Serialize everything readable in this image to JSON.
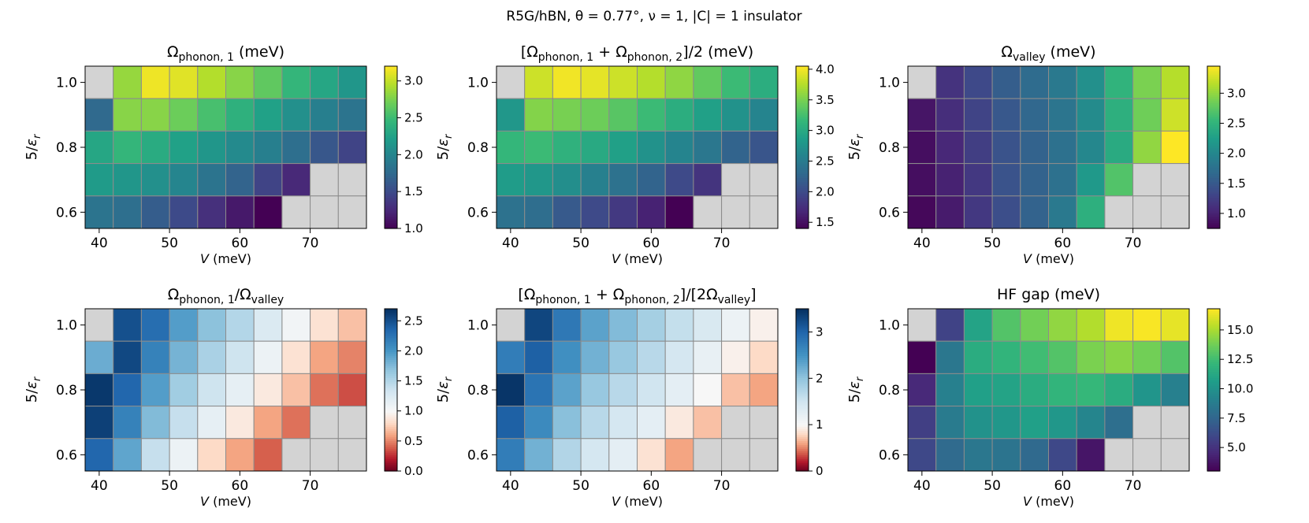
{
  "figure_title": "R5G/hBN, θ = 0.77°,  ν = 1,  |C| = 1 insulator",
  "colors": {
    "missing": "#d3d3d3",
    "cell_edge": "#8c8c8c",
    "viridis": [
      "#440154",
      "#482878",
      "#3e4989",
      "#31688e",
      "#26828e",
      "#1f9e89",
      "#35b779",
      "#6ece58",
      "#b5de2b",
      "#fde725"
    ],
    "rdbu": [
      "#67001f",
      "#b2182b",
      "#d6604d",
      "#f4a582",
      "#fddbc7",
      "#f7f7f7",
      "#d1e5f0",
      "#92c5de",
      "#4393c3",
      "#2166ac",
      "#053061"
    ]
  },
  "chart_data": [
    {
      "type": "heatmap",
      "title_main": "Ω",
      "title_sub": "phonon, 1",
      "title_rest": " (meV)",
      "xlabel": "V (meV)",
      "ylabel": "5/εr",
      "x": [
        40,
        45,
        50,
        55,
        60,
        65,
        70,
        75
      ],
      "x_edges": [
        38,
        78
      ],
      "cols": 10,
      "xticks": [
        "40",
        "50",
        "60",
        "70"
      ],
      "xtick_values": [
        40,
        50,
        60,
        70
      ],
      "y": [
        1.0,
        0.9,
        0.8,
        0.7,
        0.6
      ],
      "ylim": [
        0.55,
        1.05
      ],
      "yticks": [
        "1.0",
        "0.8",
        "0.6"
      ],
      "ytick_values": [
        1.0,
        0.8,
        0.6
      ],
      "colormap": "viridis",
      "vmin": 1.0,
      "vmax": 3.2,
      "cbar_ticks": [
        1.0,
        1.5,
        2.0,
        2.5,
        3.0
      ],
      "cbar_labels": [
        "1.0",
        "1.5",
        "2.0",
        "2.5",
        "3.0"
      ],
      "values": [
        [
          null,
          2.85,
          3.15,
          3.1,
          2.95,
          2.8,
          2.65,
          2.45,
          2.3,
          2.15
        ],
        [
          1.75,
          2.8,
          2.8,
          2.7,
          2.55,
          2.4,
          2.25,
          2.1,
          1.95,
          1.85
        ],
        [
          2.3,
          2.45,
          2.35,
          2.25,
          2.15,
          2.05,
          1.95,
          1.8,
          1.6,
          1.45
        ],
        [
          2.2,
          2.15,
          2.1,
          2.0,
          1.85,
          1.7,
          1.45,
          1.25,
          null,
          null
        ],
        [
          1.85,
          1.8,
          1.65,
          1.5,
          1.3,
          1.15,
          1.0,
          null,
          null,
          null
        ]
      ]
    },
    {
      "type": "heatmap",
      "title_main": "[Ω",
      "title_sub": "phonon, 1",
      "title_mid": " + Ω",
      "title_sub2": "phonon, 2",
      "title_rest": "]/2 (meV)",
      "xlabel": "V (meV)",
      "ylabel": "5/εr",
      "x": [
        40,
        45,
        50,
        55,
        60,
        65,
        70,
        75
      ],
      "x_edges": [
        38,
        78
      ],
      "cols": 10,
      "xticks": [
        "40",
        "50",
        "60",
        "70"
      ],
      "xtick_values": [
        40,
        50,
        60,
        70
      ],
      "y": [
        1.0,
        0.9,
        0.8,
        0.7,
        0.6
      ],
      "ylim": [
        0.55,
        1.05
      ],
      "yticks": [
        "1.0",
        "0.8",
        "0.6"
      ],
      "ytick_values": [
        1.0,
        0.8,
        0.6
      ],
      "colormap": "viridis",
      "vmin": 1.4,
      "vmax": 4.05,
      "cbar_ticks": [
        1.5,
        2.0,
        2.5,
        3.0,
        3.5,
        4.0
      ],
      "cbar_labels": [
        "1.5",
        "2.0",
        "2.5",
        "3.0",
        "3.5",
        "4.0"
      ],
      "values": [
        [
          null,
          3.85,
          4.0,
          3.95,
          3.85,
          3.75,
          3.6,
          3.4,
          3.2,
          3.05
        ],
        [
          2.8,
          3.55,
          3.5,
          3.45,
          3.35,
          3.2,
          3.05,
          2.9,
          2.75,
          2.6
        ],
        [
          3.15,
          3.2,
          3.1,
          3.0,
          2.9,
          2.75,
          2.6,
          2.45,
          2.25,
          2.1
        ],
        [
          2.85,
          2.8,
          2.7,
          2.55,
          2.4,
          2.25,
          2.0,
          1.8,
          null,
          null
        ],
        [
          2.4,
          2.35,
          2.15,
          2.0,
          1.85,
          1.65,
          1.4,
          null,
          null,
          null
        ]
      ]
    },
    {
      "type": "heatmap",
      "title_main": "Ω",
      "title_sub": "valley",
      "title_rest": " (meV)",
      "xlabel": "V (meV)",
      "ylabel": "5/εr",
      "x": [
        40,
        45,
        50,
        55,
        60,
        65,
        70,
        75
      ],
      "x_edges": [
        38,
        78
      ],
      "cols": 10,
      "xticks": [
        "40",
        "50",
        "60",
        "70"
      ],
      "xtick_values": [
        40,
        50,
        60,
        70
      ],
      "y": [
        1.0,
        0.9,
        0.8,
        0.7,
        0.6
      ],
      "ylim": [
        0.55,
        1.05
      ],
      "yticks": [
        "1.0",
        "0.8",
        "0.6"
      ],
      "ytick_values": [
        1.0,
        0.8,
        0.6
      ],
      "colormap": "viridis",
      "vmin": 0.75,
      "vmax": 3.45,
      "cbar_ticks": [
        1.0,
        1.5,
        2.0,
        2.5,
        3.0
      ],
      "cbar_labels": [
        "1.0",
        "1.5",
        "2.0",
        "2.5",
        "3.0"
      ],
      "values": [
        [
          null,
          1.15,
          1.35,
          1.55,
          1.7,
          1.85,
          2.1,
          2.5,
          2.9,
          3.15
        ],
        [
          0.9,
          1.1,
          1.3,
          1.5,
          1.65,
          1.8,
          2.05,
          2.45,
          2.85,
          3.25
        ],
        [
          0.85,
          1.05,
          1.25,
          1.45,
          1.6,
          1.75,
          2.0,
          2.4,
          3.0,
          3.45
        ],
        [
          0.85,
          1.0,
          1.2,
          1.45,
          1.6,
          1.75,
          2.2,
          2.7,
          null,
          null
        ],
        [
          0.8,
          0.95,
          1.2,
          1.4,
          1.6,
          1.85,
          2.45,
          null,
          null,
          null
        ]
      ]
    },
    {
      "type": "heatmap",
      "title_main": "Ω",
      "title_sub": "phonon, 1",
      "title_mid": "/Ω",
      "title_sub2": "valley",
      "title_rest": "",
      "xlabel": "V (meV)",
      "ylabel": "5/εr",
      "x": [
        40,
        45,
        50,
        55,
        60,
        65,
        70,
        75
      ],
      "x_edges": [
        38,
        78
      ],
      "cols": 10,
      "xticks": [
        "40",
        "50",
        "60",
        "70"
      ],
      "xtick_values": [
        40,
        50,
        60,
        70
      ],
      "y": [
        1.0,
        0.9,
        0.8,
        0.7,
        0.6
      ],
      "ylim": [
        0.55,
        1.05
      ],
      "yticks": [
        "1.0",
        "0.8",
        "0.6"
      ],
      "ytick_values": [
        1.0,
        0.8,
        0.6
      ],
      "colormap": "rdbu",
      "vmin": 0.0,
      "vmax": 2.7,
      "vcenter": 1.0,
      "cbar_ticks": [
        0.0,
        0.5,
        1.0,
        1.5,
        2.0,
        2.5
      ],
      "cbar_labels": [
        "0.0",
        "0.5",
        "1.0",
        "1.5",
        "2.0",
        "2.5"
      ],
      "values": [
        [
          null,
          2.5,
          2.3,
          1.95,
          1.7,
          1.5,
          1.25,
          1.05,
          0.85,
          0.7
        ],
        [
          1.85,
          2.55,
          2.15,
          1.8,
          1.55,
          1.35,
          1.1,
          0.85,
          0.6,
          0.5
        ],
        [
          2.65,
          2.35,
          1.95,
          1.6,
          1.35,
          1.15,
          0.9,
          0.7,
          0.45,
          0.35
        ],
        [
          2.6,
          2.15,
          1.75,
          1.4,
          1.15,
          0.9,
          0.6,
          0.45,
          null,
          null
        ],
        [
          2.35,
          1.9,
          1.4,
          1.1,
          0.8,
          0.6,
          0.4,
          null,
          null,
          null
        ]
      ]
    },
    {
      "type": "heatmap",
      "title_main": "[Ω",
      "title_sub": "phonon, 1",
      "title_mid": " + Ω",
      "title_sub2": "phonon, 2",
      "title_mid2": "]/[2Ω",
      "title_sub3": "valley",
      "title_rest": "]",
      "xlabel": "V (meV)",
      "ylabel": "5/εr",
      "x": [
        40,
        45,
        50,
        55,
        60,
        65,
        70,
        75
      ],
      "x_edges": [
        38,
        78
      ],
      "cols": 10,
      "xticks": [
        "40",
        "50",
        "60",
        "70"
      ],
      "xtick_values": [
        40,
        50,
        60,
        70
      ],
      "y": [
        1.0,
        0.9,
        0.8,
        0.7,
        0.6
      ],
      "ylim": [
        0.55,
        1.05
      ],
      "yticks": [
        "1.0",
        "0.8",
        "0.6"
      ],
      "ytick_values": [
        1.0,
        0.8,
        0.6
      ],
      "colormap": "rdbu",
      "vmin": 0.0,
      "vmax": 3.5,
      "vcenter": 1.0,
      "cbar_ticks": [
        0,
        1,
        2,
        3
      ],
      "cbar_labels": [
        "0",
        "1",
        "2",
        "3"
      ],
      "values": [
        [
          null,
          3.3,
          2.8,
          2.35,
          2.1,
          1.85,
          1.6,
          1.4,
          1.15,
          0.95
        ],
        [
          2.75,
          3.05,
          2.55,
          2.2,
          1.95,
          1.7,
          1.45,
          1.2,
          0.95,
          0.8
        ],
        [
          3.45,
          2.85,
          2.35,
          1.95,
          1.7,
          1.5,
          1.25,
          1.0,
          0.7,
          0.6
        ],
        [
          3.05,
          2.6,
          2.05,
          1.7,
          1.45,
          1.25,
          0.9,
          0.7,
          null,
          null
        ],
        [
          2.75,
          2.2,
          1.75,
          1.45,
          1.25,
          0.85,
          0.6,
          null,
          null,
          null
        ]
      ]
    },
    {
      "type": "heatmap",
      "title_main": "HF gap (meV)",
      "xlabel": "V (meV)",
      "ylabel": "5/εr",
      "x": [
        40,
        45,
        50,
        55,
        60,
        65,
        70,
        75
      ],
      "x_edges": [
        38,
        78
      ],
      "cols": 10,
      "xticks": [
        "40",
        "50",
        "60",
        "70"
      ],
      "xtick_values": [
        40,
        50,
        60,
        70
      ],
      "y": [
        1.0,
        0.9,
        0.8,
        0.7,
        0.6
      ],
      "ylim": [
        0.55,
        1.05
      ],
      "yticks": [
        "1.0",
        "0.8",
        "0.6"
      ],
      "ytick_values": [
        1.0,
        0.8,
        0.6
      ],
      "colormap": "viridis",
      "vmin": 3.0,
      "vmax": 16.8,
      "cbar_ticks": [
        5.0,
        7.5,
        10.0,
        12.5,
        15.0
      ],
      "cbar_labels": [
        "5.0",
        "7.5",
        "10.0",
        "12.5",
        "15.0"
      ],
      "values": [
        [
          null,
          5.8,
          11.0,
          13.0,
          13.8,
          14.5,
          15.2,
          16.5,
          16.7,
          16.3
        ],
        [
          3.0,
          8.5,
          11.5,
          12.0,
          12.5,
          13.0,
          14.0,
          14.3,
          13.8,
          13.0
        ],
        [
          4.6,
          9.0,
          10.8,
          11.0,
          11.5,
          12.0,
          12.2,
          11.5,
          10.2,
          9.0
        ],
        [
          5.6,
          8.7,
          10.0,
          10.3,
          10.8,
          10.3,
          9.3,
          8.0,
          null,
          null
        ],
        [
          6.0,
          7.8,
          8.5,
          8.3,
          7.7,
          6.0,
          3.8,
          null,
          null,
          null
        ]
      ]
    }
  ]
}
